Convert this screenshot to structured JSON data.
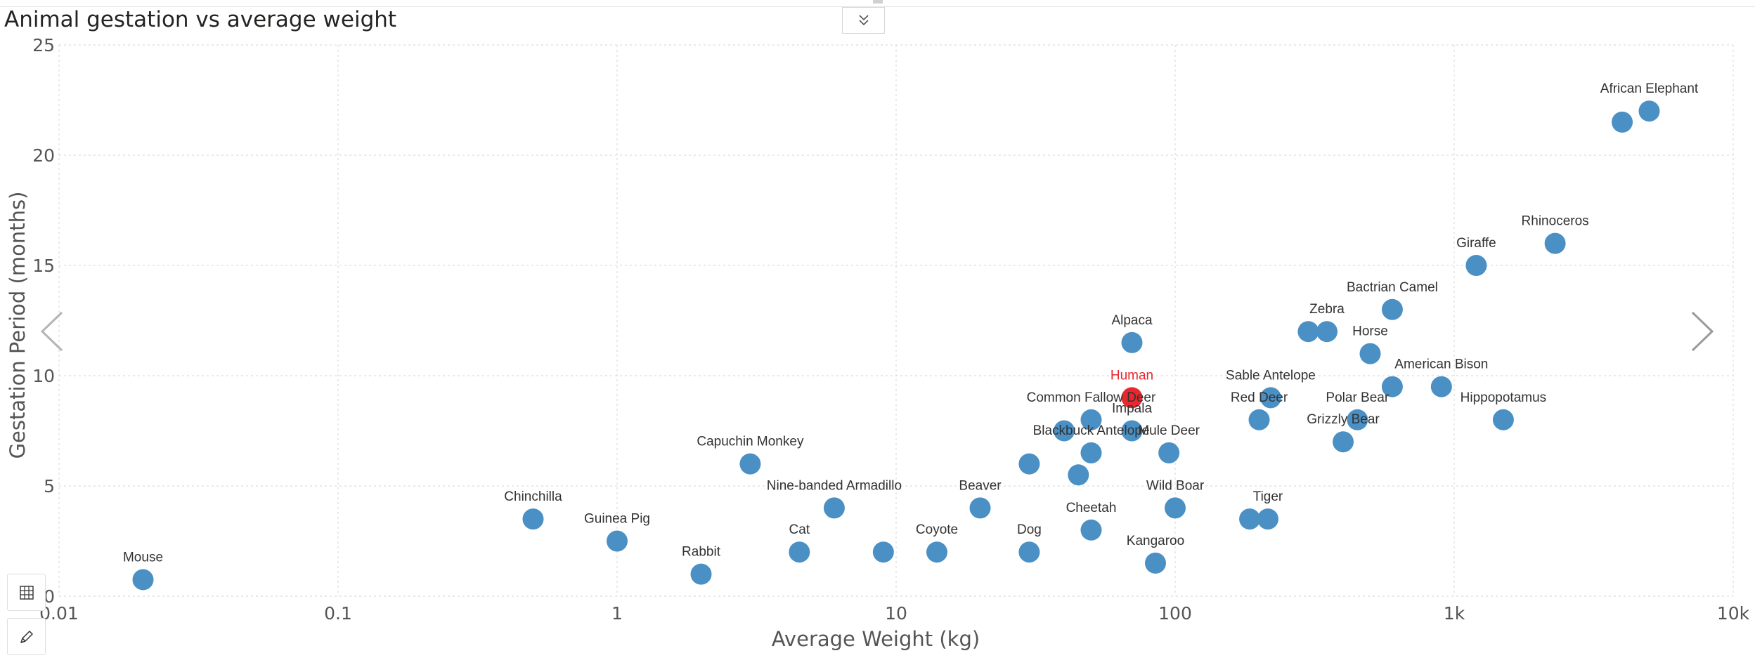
{
  "visual": {
    "title": "Animal gestation vs average weight",
    "expand_icon": "double-chevron-down-icon",
    "nav_prev_icon": "chevron-left-icon",
    "nav_next_icon": "chevron-right-icon",
    "toolbar_icons": [
      "table-view-icon",
      "pencil-icon"
    ]
  },
  "chart_data": {
    "type": "scatter",
    "xlabel": "Average Weight (kg)",
    "ylabel": "Gestation Period (months)",
    "x_scale": "log",
    "xlim": [
      0.01,
      10000
    ],
    "ylim": [
      0,
      25
    ],
    "x_ticks": [
      {
        "value": 0.01,
        "label": "0.01"
      },
      {
        "value": 0.1,
        "label": "0.1"
      },
      {
        "value": 1,
        "label": "1"
      },
      {
        "value": 10,
        "label": "10"
      },
      {
        "value": 100,
        "label": "100"
      },
      {
        "value": 1000,
        "label": "1k"
      },
      {
        "value": 10000,
        "label": "10k"
      }
    ],
    "y_ticks": [
      {
        "value": 0,
        "label": "0"
      },
      {
        "value": 5,
        "label": "5"
      },
      {
        "value": 10,
        "label": "10"
      },
      {
        "value": 15,
        "label": "15"
      },
      {
        "value": 20,
        "label": "20"
      },
      {
        "value": 25,
        "label": "25"
      }
    ],
    "grid": true,
    "point_color": "#4a90c4",
    "highlight_color": "#e8272f",
    "label_color": "#323232",
    "points": [
      {
        "label": "Mouse",
        "x": 0.02,
        "y": 0.75
      },
      {
        "label": "Chinchilla",
        "x": 0.5,
        "y": 3.5
      },
      {
        "label": "Guinea Pig",
        "x": 1,
        "y": 2.5
      },
      {
        "label": "Rabbit",
        "x": 2,
        "y": 1
      },
      {
        "label": "Capuchin Monkey",
        "x": 3,
        "y": 6
      },
      {
        "label": "Cat",
        "x": 4.5,
        "y": 2
      },
      {
        "label": "Nine-banded Armadillo",
        "x": 6,
        "y": 4
      },
      {
        "label": "",
        "x": 9,
        "y": 2
      },
      {
        "label": "Coyote",
        "x": 14,
        "y": 2
      },
      {
        "label": "Beaver",
        "x": 20,
        "y": 4
      },
      {
        "label": "Dog",
        "x": 30,
        "y": 2
      },
      {
        "label": "",
        "x": 30,
        "y": 6
      },
      {
        "label": "",
        "x": 40,
        "y": 7.5
      },
      {
        "label": "",
        "x": 45,
        "y": 5.5
      },
      {
        "label": "Blackbuck Antelope",
        "x": 50,
        "y": 6.5
      },
      {
        "label": "Common Fallow Deer",
        "x": 50,
        "y": 8
      },
      {
        "label": "Cheetah",
        "x": 50,
        "y": 3
      },
      {
        "label": "Impala",
        "x": 70,
        "y": 7.5
      },
      {
        "label": "Alpaca",
        "x": 70,
        "y": 11.5
      },
      {
        "label": "Human",
        "x": 70,
        "y": 9,
        "highlight": true
      },
      {
        "label": "Kangaroo",
        "x": 85,
        "y": 1.5
      },
      {
        "label": "Mule Deer",
        "x": 95,
        "y": 6.5
      },
      {
        "label": "Wild Boar",
        "x": 100,
        "y": 4
      },
      {
        "label": "",
        "x": 185,
        "y": 3.5
      },
      {
        "label": "Tiger",
        "x": 215,
        "y": 3.5
      },
      {
        "label": "Red Deer",
        "x": 200,
        "y": 8
      },
      {
        "label": "Sable Antelope",
        "x": 220,
        "y": 9
      },
      {
        "label": "",
        "x": 300,
        "y": 12
      },
      {
        "label": "Zebra",
        "x": 350,
        "y": 12
      },
      {
        "label": "Grizzly Bear",
        "x": 400,
        "y": 7
      },
      {
        "label": "Polar Bear",
        "x": 450,
        "y": 8
      },
      {
        "label": "Horse",
        "x": 500,
        "y": 11
      },
      {
        "label": "Bactrian Camel",
        "x": 600,
        "y": 13
      },
      {
        "label": "",
        "x": 600,
        "y": 9.5
      },
      {
        "label": "American Bison",
        "x": 900,
        "y": 9.5
      },
      {
        "label": "Giraffe",
        "x": 1200,
        "y": 15
      },
      {
        "label": "Hippopotamus",
        "x": 1500,
        "y": 8
      },
      {
        "label": "Rhinoceros",
        "x": 2300,
        "y": 16
      },
      {
        "label": "",
        "x": 4000,
        "y": 21.5
      },
      {
        "label": "African Elephant",
        "x": 5000,
        "y": 22
      }
    ]
  }
}
